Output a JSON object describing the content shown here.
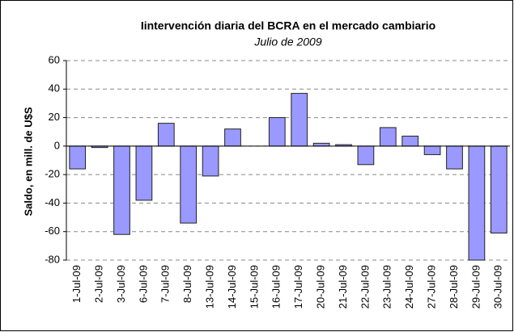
{
  "chart_data": {
    "type": "bar",
    "title": "Iintervención diaria del BCRA en el mercado cambiario",
    "subtitle": "Julio de 2009",
    "y_label": "Saldo, en mill. de U$S",
    "categories": [
      "1-Jul-09",
      "2-Jul-09",
      "3-Jul-09",
      "6-Jul-09",
      "7-Jul-09",
      "8-Jul-09",
      "13-Jul-09",
      "14-Jul-09",
      "15-Jul-09",
      "16-Jul-09",
      "17-Jul-09",
      "20-Jul-09",
      "21-Jul-09",
      "22-Jul-09",
      "23-Jul-09",
      "24-Jul-09",
      "27-Jul-09",
      "28-Jul-09",
      "29-Jul-09",
      "30-Jul-09"
    ],
    "values": [
      -16,
      -1,
      -62,
      -38,
      16,
      -54,
      -21,
      12,
      0,
      20,
      37,
      2,
      1,
      -13,
      13,
      7,
      -6,
      -16,
      -80,
      -61
    ],
    "color": "#9999ff",
    "ylim": [
      -80,
      60
    ],
    "yticks": [
      -80,
      -60,
      -40,
      -20,
      0,
      20,
      40,
      60
    ],
    "grid": true
  }
}
